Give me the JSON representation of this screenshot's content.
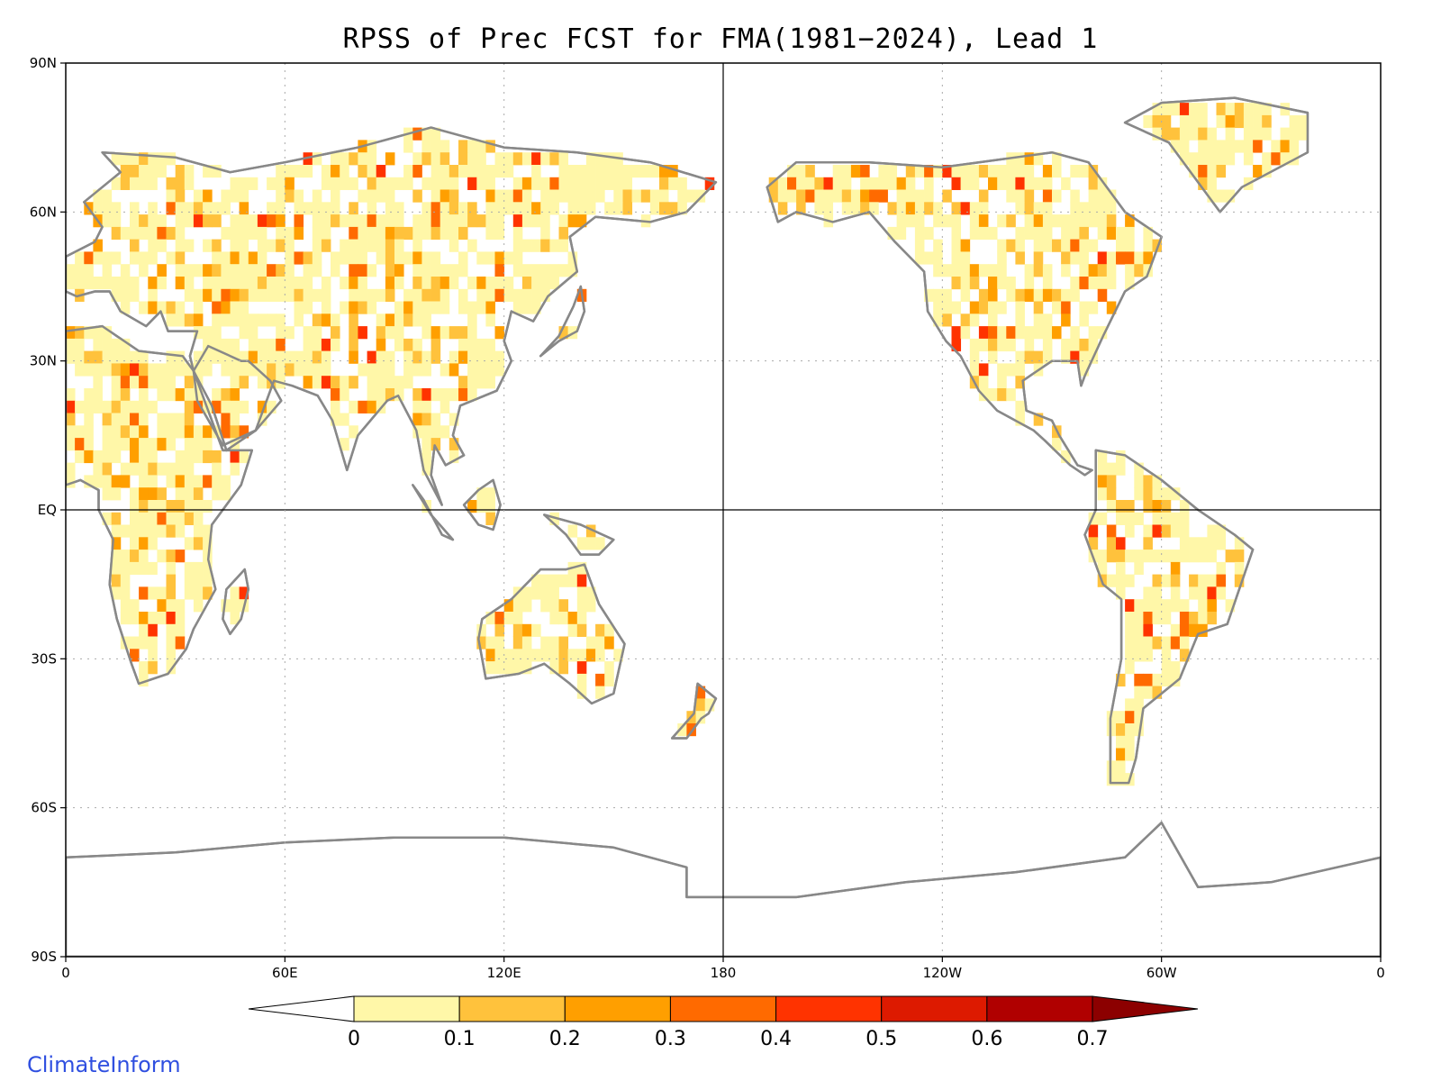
{
  "title": "RPSS of Prec FCST for FMA(1981−2024), Lead 1",
  "credit": "ClimateInform",
  "map": {
    "projection": "plate-carree",
    "center_longitude": 180,
    "lon_range": [
      0,
      360
    ],
    "lat_range": [
      -90,
      90
    ],
    "grid": "dotted",
    "lat_ticks": [
      {
        "lat": 90,
        "label": "90N"
      },
      {
        "lat": 60,
        "label": "60N"
      },
      {
        "lat": 30,
        "label": "30N"
      },
      {
        "lat": 0,
        "label": "EQ"
      },
      {
        "lat": -30,
        "label": "30S"
      },
      {
        "lat": -60,
        "label": "60S"
      },
      {
        "lat": -90,
        "label": "90S"
      }
    ],
    "lon_ticks": [
      {
        "lon": 0,
        "label": "0"
      },
      {
        "lon": 60,
        "label": "60E"
      },
      {
        "lon": 120,
        "label": "120E"
      },
      {
        "lon": 180,
        "label": "180"
      },
      {
        "lon": 240,
        "label": "120W"
      },
      {
        "lon": 300,
        "label": "60W"
      },
      {
        "lon": 360,
        "label": "0"
      }
    ],
    "land_color": "#888888",
    "colorbar": {
      "levels": [
        "0",
        "0.1",
        "0.2",
        "0.3",
        "0.4",
        "0.5",
        "0.6",
        "0.7"
      ],
      "colors": [
        "#ffffff",
        "#fff7a8",
        "#ffc23c",
        "#ff9f00",
        "#ff6a00",
        "#ff3300",
        "#dd1a00",
        "#b00000",
        "#8c0000"
      ],
      "extend": "both"
    }
  }
}
